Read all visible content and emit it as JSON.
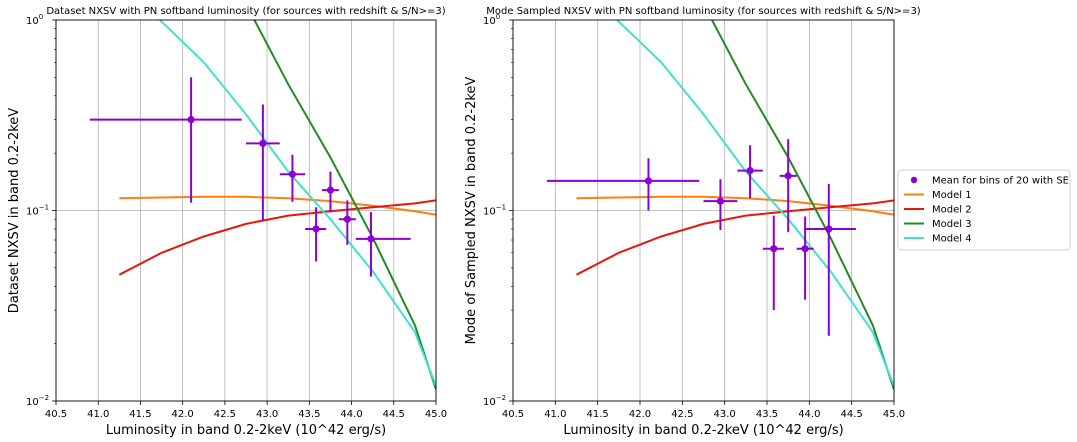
{
  "chart_data": [
    {
      "type": "line",
      "title": "Dataset NXSV with PN softband luminosity (for sources with redshift & S/N>=3)",
      "xlabel": "Luminosity in band 0.2-2keV (10^42 erg/s)",
      "ylabel": "Dataset NXSV in band 0.2-2keV",
      "xlim": [
        40.5,
        45.0
      ],
      "ylim": [
        0.01,
        1.0
      ],
      "yscale": "log",
      "grid": "vertical",
      "xticks": [
        "40.5",
        "41.0",
        "41.5",
        "42.0",
        "42.5",
        "43.0",
        "43.5",
        "44.0",
        "44.5",
        "45.0"
      ],
      "yticks": [
        {
          "value": 0.01,
          "base": "10",
          "exp": "−2"
        },
        {
          "value": 0.1,
          "base": "10",
          "exp": "−1"
        },
        {
          "value": 1.0,
          "base": "10",
          "exp": "0"
        }
      ],
      "series": [
        {
          "name": "Model 1",
          "color": "#ff7f0e",
          "x": [
            41.25,
            41.75,
            42.25,
            42.75,
            43.25,
            43.75,
            44.25,
            44.75,
            45.0
          ],
          "y": [
            0.116,
            0.117,
            0.118,
            0.118,
            0.116,
            0.112,
            0.106,
            0.099,
            0.095
          ]
        },
        {
          "name": "Model 2",
          "color": "#e8170b",
          "x": [
            41.25,
            41.75,
            42.25,
            42.75,
            43.25,
            43.75,
            44.25,
            44.75,
            45.0
          ],
          "y": [
            0.046,
            0.06,
            0.073,
            0.085,
            0.094,
            0.099,
            0.104,
            0.109,
            0.113
          ]
        },
        {
          "name": "Model 3",
          "color": "#228b22",
          "x": [
            42.85,
            43.25,
            43.75,
            44.25,
            44.75,
            45.0
          ],
          "y": [
            1.0,
            0.46,
            0.19,
            0.072,
            0.025,
            0.0115
          ]
        },
        {
          "name": "Model 4",
          "color": "#40e0d0",
          "x": [
            41.73,
            42.25,
            42.75,
            43.25,
            43.75,
            44.25,
            44.75,
            45.0
          ],
          "y": [
            1.0,
            0.6,
            0.32,
            0.16,
            0.09,
            0.048,
            0.023,
            0.012
          ]
        }
      ],
      "points": {
        "name": "Mean for bins of 20 with SE",
        "color": "#8c00d4",
        "x": [
          42.1,
          42.95,
          43.3,
          43.58,
          43.75,
          43.95,
          44.23
        ],
        "y": [
          0.3,
          0.225,
          0.155,
          0.08,
          0.128,
          0.09,
          0.071
        ],
        "xerr_low": [
          40.9,
          42.75,
          43.15,
          43.45,
          43.65,
          43.85,
          44.05
        ],
        "xerr_high": [
          42.7,
          43.15,
          43.45,
          43.7,
          43.85,
          44.05,
          44.7
        ],
        "yerr_low": [
          0.11,
          0.088,
          0.111,
          0.054,
          0.098,
          0.066,
          0.045
        ],
        "yerr_high": [
          0.5,
          0.36,
          0.196,
          0.104,
          0.16,
          0.113,
          0.098
        ]
      }
    },
    {
      "type": "line",
      "title": "Mode Sampled NXSV with PN softband luminosity (for sources with redshift & S/N>=3)",
      "xlabel": "Luminosity in band 0.2-2keV (10^42 erg/s)",
      "ylabel": "Mode of Sampled NXSV in band 0.2-2keV",
      "xlim": [
        40.5,
        45.0
      ],
      "ylim": [
        0.01,
        1.0
      ],
      "yscale": "log",
      "grid": "vertical",
      "xticks": [
        "40.5",
        "41.0",
        "41.5",
        "42.0",
        "42.5",
        "43.0",
        "43.5",
        "44.0",
        "44.5",
        "45.0"
      ],
      "yticks": [
        {
          "value": 0.01,
          "base": "10",
          "exp": "−2"
        },
        {
          "value": 0.1,
          "base": "10",
          "exp": "−1"
        },
        {
          "value": 1.0,
          "base": "10",
          "exp": "0"
        }
      ],
      "series": [
        {
          "name": "Model 1",
          "color": "#ff7f0e",
          "x": [
            41.25,
            41.75,
            42.25,
            42.75,
            43.25,
            43.75,
            44.25,
            44.75,
            45.0
          ],
          "y": [
            0.116,
            0.117,
            0.118,
            0.118,
            0.116,
            0.112,
            0.106,
            0.099,
            0.095
          ]
        },
        {
          "name": "Model 2",
          "color": "#e8170b",
          "x": [
            41.25,
            41.75,
            42.25,
            42.75,
            43.25,
            43.75,
            44.25,
            44.75,
            45.0
          ],
          "y": [
            0.046,
            0.06,
            0.073,
            0.085,
            0.094,
            0.099,
            0.104,
            0.109,
            0.113
          ]
        },
        {
          "name": "Model 3",
          "color": "#228b22",
          "x": [
            42.85,
            43.25,
            43.75,
            44.25,
            44.75,
            45.0
          ],
          "y": [
            1.0,
            0.46,
            0.19,
            0.072,
            0.025,
            0.0115
          ]
        },
        {
          "name": "Model 4",
          "color": "#40e0d0",
          "x": [
            41.73,
            42.25,
            42.75,
            43.25,
            43.75,
            44.25,
            44.75,
            45.0
          ],
          "y": [
            1.0,
            0.6,
            0.32,
            0.16,
            0.09,
            0.048,
            0.023,
            0.012
          ]
        }
      ],
      "points": {
        "name": "Mean for bins of 20 with SE",
        "color": "#8c00d4",
        "x": [
          42.1,
          42.95,
          43.3,
          43.58,
          43.75,
          43.95,
          44.23
        ],
        "y": [
          0.143,
          0.112,
          0.162,
          0.063,
          0.152,
          0.063,
          0.08
        ],
        "xerr_low": [
          40.9,
          42.75,
          43.15,
          43.45,
          43.65,
          43.85,
          43.95
        ],
        "xerr_high": [
          42.7,
          43.15,
          43.45,
          43.7,
          43.85,
          44.05,
          44.55
        ],
        "yerr_low": [
          0.1,
          0.079,
          0.116,
          0.03,
          0.077,
          0.034,
          0.022
        ],
        "yerr_high": [
          0.188,
          0.146,
          0.22,
          0.094,
          0.237,
          0.093,
          0.138
        ]
      }
    }
  ],
  "legend": {
    "placement": "right",
    "entries": [
      {
        "label": "Mean for bins of 20 with SE",
        "color": "#8c00d4",
        "kind": "marker"
      },
      {
        "label": "Model 1",
        "color": "#ff7f0e",
        "kind": "line"
      },
      {
        "label": "Model 2",
        "color": "#e8170b",
        "kind": "line"
      },
      {
        "label": "Model 3",
        "color": "#228b22",
        "kind": "line"
      },
      {
        "label": "Model 4",
        "color": "#40e0d0",
        "kind": "line"
      }
    ]
  }
}
